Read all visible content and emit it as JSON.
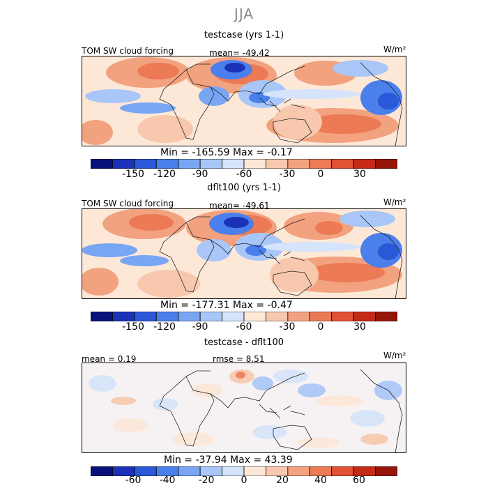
{
  "season": "JJA",
  "panels": [
    {
      "title": "testcase (yrs 1-1)",
      "left_label": "TOM SW cloud forcing",
      "center_label": "mean= -49.42",
      "units": "W/m²",
      "range": "Min = -165.59 Max =   -0.17",
      "colorbar_ticks": [
        "-150",
        "-120",
        "-90",
        "-60",
        "-30",
        "0",
        "30"
      ]
    },
    {
      "title": "dflt100 (yrs 1-1)",
      "left_label": "TOM SW cloud forcing",
      "center_label": "mean= -49.61",
      "units": "W/m²",
      "range": "Min = -177.31 Max =   -0.47",
      "colorbar_ticks": [
        "-150",
        "-120",
        "-90",
        "-60",
        "-30",
        "0",
        "30"
      ]
    },
    {
      "title": "testcase - dflt100",
      "left_label": "mean =   0.19",
      "center_label": "rmse =    8.51",
      "units": "W/m²",
      "range": "Min = -37.94 Max =  43.39",
      "colorbar_ticks": [
        "-60",
        "-40",
        "-20",
        "0",
        "20",
        "40",
        "60"
      ]
    }
  ],
  "colors": {
    "scale_main": [
      "#08107a",
      "#1a31b8",
      "#2a58d8",
      "#4a7fec",
      "#79a6f4",
      "#a9c6f8",
      "#d5e4fa",
      "#fde8d8",
      "#f7c8ad",
      "#f2a27f",
      "#ec7a55",
      "#e05233",
      "#c52a19",
      "#951509"
    ],
    "scale_diff": [
      "#08107a",
      "#1a31b8",
      "#2a58d8",
      "#4a7fec",
      "#79a6f4",
      "#a9c6f8",
      "#d5e4fa",
      "#fde8d8",
      "#f7c8ad",
      "#f2a27f",
      "#ec7a55",
      "#e05233",
      "#c52a19",
      "#951509"
    ]
  }
}
